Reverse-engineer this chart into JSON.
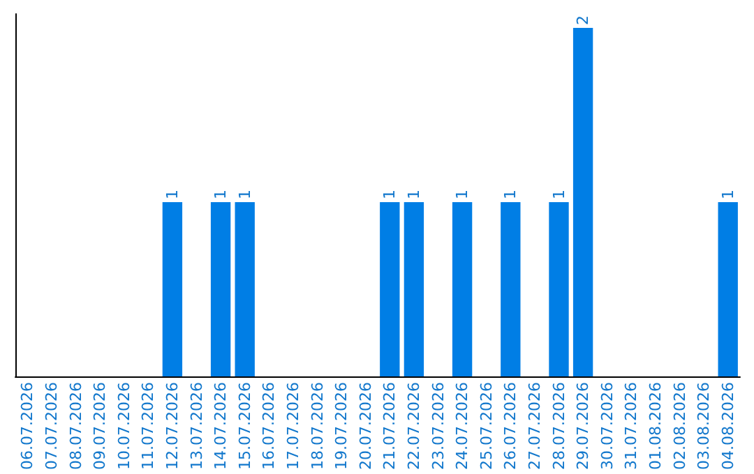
{
  "chart_data": {
    "type": "bar",
    "categories": [
      "06.07.2026",
      "07.07.2026",
      "08.07.2026",
      "09.07.2026",
      "10.07.2026",
      "11.07.2026",
      "12.07.2026",
      "13.07.2026",
      "14.07.2026",
      "15.07.2026",
      "16.07.2026",
      "17.07.2026",
      "18.07.2026",
      "19.07.2026",
      "20.07.2026",
      "21.07.2026",
      "22.07.2026",
      "23.07.2026",
      "24.07.2026",
      "25.07.2026",
      "26.07.2026",
      "27.07.2026",
      "28.07.2026",
      "29.07.2026",
      "30.07.2026",
      "31.07.2026",
      "01.08.2026",
      "02.08.2026",
      "03.08.2026",
      "04.08.2026"
    ],
    "values": [
      0,
      0,
      0,
      0,
      0,
      0,
      1,
      0,
      1,
      1,
      0,
      0,
      0,
      0,
      0,
      1,
      1,
      0,
      1,
      0,
      1,
      0,
      1,
      2,
      0,
      0,
      0,
      0,
      0,
      1
    ],
    "value_labels": [
      null,
      null,
      null,
      null,
      null,
      null,
      "1",
      null,
      "1",
      "1",
      null,
      null,
      null,
      null,
      null,
      "1",
      "1",
      null,
      "1",
      null,
      "1",
      null,
      "1",
      "2",
      null,
      null,
      null,
      null,
      null,
      "1"
    ],
    "color": "#007ee5",
    "tick_labels": "x"
  }
}
